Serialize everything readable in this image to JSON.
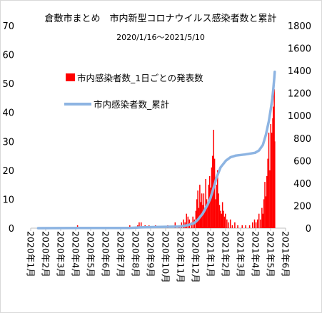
{
  "chart_data": {
    "type": "bar+line",
    "title": "倉敷市まとめ　市内新型コロナウイルス感染者数と累計",
    "subtitle": "2020/1/16～2021/5/10",
    "y_left": {
      "ylim": [
        0,
        70
      ],
      "ticks": [
        "0",
        "10",
        "20",
        "30",
        "40",
        "50",
        "60",
        "70"
      ]
    },
    "y_right": {
      "ylim": [
        0,
        1800
      ],
      "ticks": [
        "0",
        "200",
        "400",
        "600",
        "800",
        "1000",
        "1200",
        "1400",
        "1600",
        "1800"
      ]
    },
    "x_ticks": [
      "2020年1月",
      "2020年2月",
      "2020年3月",
      "2020年4月",
      "2020年5月",
      "2020年6月",
      "2020年7月",
      "2020年8月",
      "2020年9月",
      "2020年10月",
      "2020年11月",
      "2020年12月",
      "2021年1月",
      "2021年2月",
      "2021年3月",
      "2021年4月",
      "2021年5月",
      "2021年6月"
    ],
    "grid": false,
    "legend_position": "inside upper-left",
    "series": [
      {
        "name": "市内感染者数_1日ごとの発表数",
        "type": "bar",
        "axis": "left",
        "color": "#ff0000",
        "points": [
          [
            "2020-04-05",
            1
          ],
          [
            "2020-07-20",
            1
          ],
          [
            "2020-08-05",
            1
          ],
          [
            "2020-08-08",
            2
          ],
          [
            "2020-08-12",
            2
          ],
          [
            "2020-08-20",
            1
          ],
          [
            "2020-08-28",
            1
          ],
          [
            "2020-09-10",
            1
          ],
          [
            "2020-10-05",
            1
          ],
          [
            "2020-10-20",
            2
          ],
          [
            "2020-10-28",
            1
          ],
          [
            "2020-11-02",
            2
          ],
          [
            "2020-11-06",
            3
          ],
          [
            "2020-11-09",
            2
          ],
          [
            "2020-11-12",
            5
          ],
          [
            "2020-11-15",
            4
          ],
          [
            "2020-11-18",
            3
          ],
          [
            "2020-11-22",
            2
          ],
          [
            "2020-11-25",
            4
          ],
          [
            "2020-11-28",
            3
          ],
          [
            "2020-12-01",
            6
          ],
          [
            "2020-12-03",
            10
          ],
          [
            "2020-12-05",
            13
          ],
          [
            "2020-12-07",
            7
          ],
          [
            "2020-12-09",
            15
          ],
          [
            "2020-12-11",
            9
          ],
          [
            "2020-12-13",
            12
          ],
          [
            "2020-12-15",
            8
          ],
          [
            "2020-12-17",
            12
          ],
          [
            "2020-12-19",
            6
          ],
          [
            "2020-12-21",
            17
          ],
          [
            "2020-12-23",
            10
          ],
          [
            "2020-12-25",
            8
          ],
          [
            "2020-12-27",
            15
          ],
          [
            "2020-12-29",
            18
          ],
          [
            "2020-12-31",
            14
          ],
          [
            "2021-01-02",
            21
          ],
          [
            "2021-01-04",
            25
          ],
          [
            "2021-01-06",
            34
          ],
          [
            "2021-01-08",
            24
          ],
          [
            "2021-01-10",
            10
          ],
          [
            "2021-01-12",
            15
          ],
          [
            "2021-01-14",
            20
          ],
          [
            "2021-01-16",
            12
          ],
          [
            "2021-01-18",
            8
          ],
          [
            "2021-01-20",
            6
          ],
          [
            "2021-01-22",
            5
          ],
          [
            "2021-01-24",
            9
          ],
          [
            "2021-01-26",
            6
          ],
          [
            "2021-01-28",
            4
          ],
          [
            "2021-01-30",
            5
          ],
          [
            "2021-02-02",
            3
          ],
          [
            "2021-02-05",
            2
          ],
          [
            "2021-02-09",
            3
          ],
          [
            "2021-02-13",
            1
          ],
          [
            "2021-02-18",
            2
          ],
          [
            "2021-02-24",
            1
          ],
          [
            "2021-03-05",
            1
          ],
          [
            "2021-03-12",
            1
          ],
          [
            "2021-03-20",
            1
          ],
          [
            "2021-03-26",
            2
          ],
          [
            "2021-03-30",
            3
          ],
          [
            "2021-04-02",
            2
          ],
          [
            "2021-04-05",
            3
          ],
          [
            "2021-04-08",
            5
          ],
          [
            "2021-04-11",
            3
          ],
          [
            "2021-04-14",
            7
          ],
          [
            "2021-04-16",
            5
          ],
          [
            "2021-04-18",
            10
          ],
          [
            "2021-04-20",
            16
          ],
          [
            "2021-04-22",
            11
          ],
          [
            "2021-04-24",
            18
          ],
          [
            "2021-04-26",
            24
          ],
          [
            "2021-04-28",
            33
          ],
          [
            "2021-04-30",
            20
          ],
          [
            "2021-05-02",
            36
          ],
          [
            "2021-05-04",
            33
          ],
          [
            "2021-05-06",
            38
          ],
          [
            "2021-05-07",
            42
          ],
          [
            "2021-05-08",
            35
          ],
          [
            "2021-05-09",
            48
          ],
          [
            "2021-05-10",
            30
          ]
        ]
      },
      {
        "name": "市内感染者数_累計",
        "type": "line",
        "axis": "right",
        "color": "#8db4e2",
        "points": [
          [
            "2020-01-16",
            0
          ],
          [
            "2020-04-05",
            1
          ],
          [
            "2020-07-20",
            2
          ],
          [
            "2020-08-12",
            7
          ],
          [
            "2020-09-10",
            10
          ],
          [
            "2020-10-28",
            14
          ],
          [
            "2020-11-02",
            16
          ],
          [
            "2020-11-15",
            27
          ],
          [
            "2020-11-28",
            45
          ],
          [
            "2020-12-05",
            75
          ],
          [
            "2020-12-15",
            130
          ],
          [
            "2020-12-25",
            210
          ],
          [
            "2020-12-31",
            270
          ],
          [
            "2021-01-06",
            360
          ],
          [
            "2021-01-12",
            450
          ],
          [
            "2021-01-20",
            540
          ],
          [
            "2021-01-31",
            600
          ],
          [
            "2021-02-09",
            630
          ],
          [
            "2021-02-20",
            645
          ],
          [
            "2021-03-10",
            655
          ],
          [
            "2021-03-31",
            670
          ],
          [
            "2021-04-08",
            690
          ],
          [
            "2021-04-16",
            740
          ],
          [
            "2021-04-22",
            830
          ],
          [
            "2021-04-28",
            950
          ],
          [
            "2021-05-02",
            1060
          ],
          [
            "2021-05-05",
            1150
          ],
          [
            "2021-05-07",
            1230
          ],
          [
            "2021-05-09",
            1330
          ],
          [
            "2021-05-10",
            1390
          ]
        ]
      }
    ]
  }
}
